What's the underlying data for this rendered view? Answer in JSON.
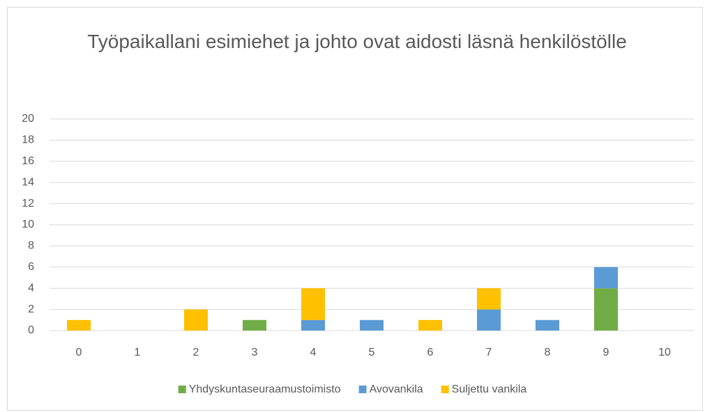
{
  "chart_data": {
    "type": "bar",
    "stacked": true,
    "title": "Työpaikallani esimiehet ja johto ovat aidosti läsnä henkilöstölle",
    "categories": [
      "0",
      "1",
      "2",
      "3",
      "4",
      "5",
      "6",
      "7",
      "8",
      "9",
      "10"
    ],
    "series": [
      {
        "name": "Yhdyskuntaseuraamustoimisto",
        "color": "#70ad47",
        "values": [
          0,
          0,
          0,
          1,
          0,
          0,
          0,
          0,
          0,
          4,
          0
        ]
      },
      {
        "name": "Avovankila",
        "color": "#5b9bd5",
        "values": [
          0,
          0,
          0,
          0,
          1,
          1,
          0,
          2,
          1,
          2,
          0
        ]
      },
      {
        "name": "Suljettu vankila",
        "color": "#ffc000",
        "values": [
          1,
          0,
          2,
          0,
          3,
          0,
          1,
          2,
          0,
          0,
          0
        ]
      }
    ],
    "ylim": [
      0,
      20
    ],
    "yticks": [
      0,
      2,
      4,
      6,
      8,
      10,
      12,
      14,
      16,
      18,
      20
    ],
    "grid": true,
    "legend": "bottom"
  }
}
